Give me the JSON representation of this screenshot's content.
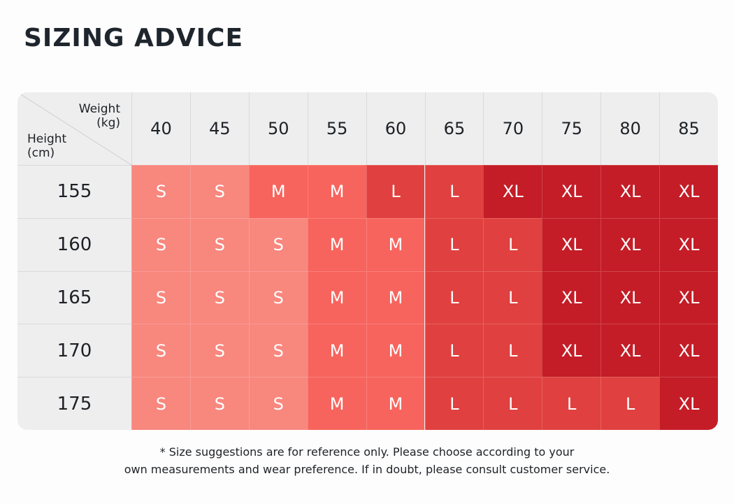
{
  "header": {
    "title": "SIZING ADVICE"
  },
  "table": {
    "corner": {
      "column_label": [
        "Weight",
        "(kg)"
      ],
      "row_label": [
        "Height",
        "(cm)"
      ]
    },
    "columns": [
      "40",
      "45",
      "50",
      "55",
      "60",
      "65",
      "70",
      "75",
      "80",
      "85"
    ],
    "rows": [
      "155",
      "160",
      "165",
      "170",
      "175"
    ],
    "cells": [
      [
        "S",
        "S",
        "M",
        "M",
        "L",
        "L",
        "XL",
        "XL",
        "XL",
        "XL"
      ],
      [
        "S",
        "S",
        "S",
        "M",
        "M",
        "L",
        "L",
        "XL",
        "XL",
        "XL"
      ],
      [
        "S",
        "S",
        "S",
        "M",
        "M",
        "L",
        "L",
        "XL",
        "XL",
        "XL"
      ],
      [
        "S",
        "S",
        "S",
        "M",
        "M",
        "L",
        "L",
        "XL",
        "XL",
        "XL"
      ],
      [
        "S",
        "S",
        "S",
        "M",
        "M",
        "L",
        "L",
        "L",
        "L",
        "XL"
      ]
    ],
    "size_colors": {
      "S": "#f8877e",
      "M": "#f7645d",
      "L": "#e0403f",
      "XL": "#c41d27"
    }
  },
  "footnote": [
    "* Size suggestions are for reference only. Please choose according to your",
    "own measurements and wear preference. If in doubt, please consult customer service."
  ]
}
